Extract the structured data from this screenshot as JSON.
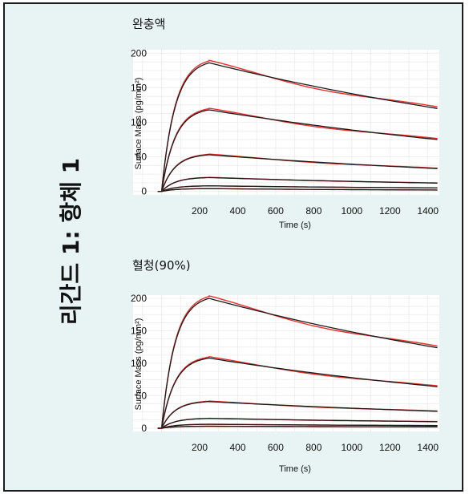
{
  "panel": {
    "side_label": "리간드 1: 항체 1"
  },
  "chart_data": [
    {
      "type": "line",
      "title": "완충액",
      "xlabel": "Time (s)",
      "ylabel": "Surface Mass (pg/mm²)",
      "xlim": [
        -150,
        1460
      ],
      "ylim": [
        -5,
        205
      ],
      "xticks": [
        200,
        400,
        600,
        800,
        1000,
        1200,
        1400
      ],
      "yticks": [
        0,
        50,
        100,
        150,
        200
      ],
      "grid": true,
      "series_colors": {
        "measured": "#e8302d",
        "fit": "#1a1a1a"
      },
      "association_end": 250,
      "series": [
        {
          "values": {
            "plateau": 186,
            "end": 120
          }
        },
        {
          "values": {
            "plateau": 118,
            "end": 75
          }
        },
        {
          "values": {
            "plateau": 53,
            "end": 33
          }
        },
        {
          "values": {
            "plateau": 20,
            "end": 12
          }
        },
        {
          "values": {
            "plateau": 8,
            "end": 5
          }
        },
        {
          "values": {
            "plateau": 4,
            "end": 2
          }
        }
      ]
    },
    {
      "type": "line",
      "title": "혈청(90%)",
      "xlabel": "Time (s)",
      "ylabel": "Surface Mass (pg/mm²)",
      "xlim": [
        -150,
        1460
      ],
      "ylim": [
        -5,
        205
      ],
      "xticks": [
        200,
        400,
        600,
        800,
        1000,
        1200,
        1400
      ],
      "yticks": [
        0,
        50,
        100,
        150,
        200
      ],
      "grid": true,
      "series_colors": {
        "measured": "#e8302d",
        "fit": "#1a1a1a"
      },
      "association_end": 250,
      "series": [
        {
          "values": {
            "plateau": 200,
            "end": 124
          }
        },
        {
          "values": {
            "plateau": 108,
            "end": 64
          }
        },
        {
          "values": {
            "plateau": 41,
            "end": 26
          }
        },
        {
          "values": {
            "plateau": 15,
            "end": 10
          }
        },
        {
          "values": {
            "plateau": 6,
            "end": 4
          }
        },
        {
          "values": {
            "plateau": 3,
            "end": 2
          }
        }
      ]
    }
  ]
}
